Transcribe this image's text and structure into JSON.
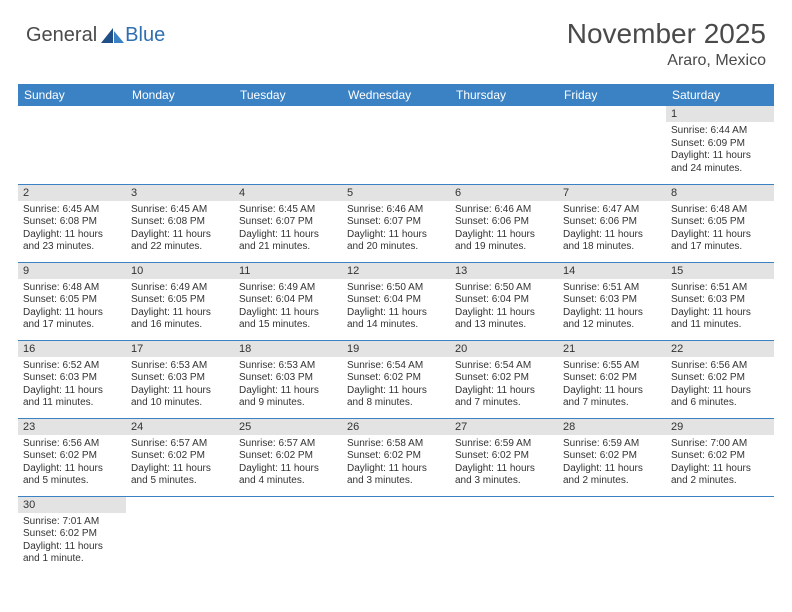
{
  "logo": {
    "text_general": "General",
    "text_blue": "Blue",
    "icon_color_dark": "#1f4f86",
    "icon_color_light": "#3b82c4"
  },
  "header": {
    "month_title": "November 2025",
    "location": "Araro, Mexico"
  },
  "colors": {
    "header_bg": "#3b82c4",
    "header_text": "#ffffff",
    "daynum_bg": "#e3e3e3",
    "cell_border": "#3b82c4",
    "text": "#333333",
    "title_text": "#4a4a4a"
  },
  "weekdays": [
    "Sunday",
    "Monday",
    "Tuesday",
    "Wednesday",
    "Thursday",
    "Friday",
    "Saturday"
  ],
  "weeks": [
    [
      null,
      null,
      null,
      null,
      null,
      null,
      {
        "n": "1",
        "sr": "Sunrise: 6:44 AM",
        "ss": "Sunset: 6:09 PM",
        "dl": "Daylight: 11 hours and 24 minutes."
      }
    ],
    [
      {
        "n": "2",
        "sr": "Sunrise: 6:45 AM",
        "ss": "Sunset: 6:08 PM",
        "dl": "Daylight: 11 hours and 23 minutes."
      },
      {
        "n": "3",
        "sr": "Sunrise: 6:45 AM",
        "ss": "Sunset: 6:08 PM",
        "dl": "Daylight: 11 hours and 22 minutes."
      },
      {
        "n": "4",
        "sr": "Sunrise: 6:45 AM",
        "ss": "Sunset: 6:07 PM",
        "dl": "Daylight: 11 hours and 21 minutes."
      },
      {
        "n": "5",
        "sr": "Sunrise: 6:46 AM",
        "ss": "Sunset: 6:07 PM",
        "dl": "Daylight: 11 hours and 20 minutes."
      },
      {
        "n": "6",
        "sr": "Sunrise: 6:46 AM",
        "ss": "Sunset: 6:06 PM",
        "dl": "Daylight: 11 hours and 19 minutes."
      },
      {
        "n": "7",
        "sr": "Sunrise: 6:47 AM",
        "ss": "Sunset: 6:06 PM",
        "dl": "Daylight: 11 hours and 18 minutes."
      },
      {
        "n": "8",
        "sr": "Sunrise: 6:48 AM",
        "ss": "Sunset: 6:05 PM",
        "dl": "Daylight: 11 hours and 17 minutes."
      }
    ],
    [
      {
        "n": "9",
        "sr": "Sunrise: 6:48 AM",
        "ss": "Sunset: 6:05 PM",
        "dl": "Daylight: 11 hours and 17 minutes."
      },
      {
        "n": "10",
        "sr": "Sunrise: 6:49 AM",
        "ss": "Sunset: 6:05 PM",
        "dl": "Daylight: 11 hours and 16 minutes."
      },
      {
        "n": "11",
        "sr": "Sunrise: 6:49 AM",
        "ss": "Sunset: 6:04 PM",
        "dl": "Daylight: 11 hours and 15 minutes."
      },
      {
        "n": "12",
        "sr": "Sunrise: 6:50 AM",
        "ss": "Sunset: 6:04 PM",
        "dl": "Daylight: 11 hours and 14 minutes."
      },
      {
        "n": "13",
        "sr": "Sunrise: 6:50 AM",
        "ss": "Sunset: 6:04 PM",
        "dl": "Daylight: 11 hours and 13 minutes."
      },
      {
        "n": "14",
        "sr": "Sunrise: 6:51 AM",
        "ss": "Sunset: 6:03 PM",
        "dl": "Daylight: 11 hours and 12 minutes."
      },
      {
        "n": "15",
        "sr": "Sunrise: 6:51 AM",
        "ss": "Sunset: 6:03 PM",
        "dl": "Daylight: 11 hours and 11 minutes."
      }
    ],
    [
      {
        "n": "16",
        "sr": "Sunrise: 6:52 AM",
        "ss": "Sunset: 6:03 PM",
        "dl": "Daylight: 11 hours and 11 minutes."
      },
      {
        "n": "17",
        "sr": "Sunrise: 6:53 AM",
        "ss": "Sunset: 6:03 PM",
        "dl": "Daylight: 11 hours and 10 minutes."
      },
      {
        "n": "18",
        "sr": "Sunrise: 6:53 AM",
        "ss": "Sunset: 6:03 PM",
        "dl": "Daylight: 11 hours and 9 minutes."
      },
      {
        "n": "19",
        "sr": "Sunrise: 6:54 AM",
        "ss": "Sunset: 6:02 PM",
        "dl": "Daylight: 11 hours and 8 minutes."
      },
      {
        "n": "20",
        "sr": "Sunrise: 6:54 AM",
        "ss": "Sunset: 6:02 PM",
        "dl": "Daylight: 11 hours and 7 minutes."
      },
      {
        "n": "21",
        "sr": "Sunrise: 6:55 AM",
        "ss": "Sunset: 6:02 PM",
        "dl": "Daylight: 11 hours and 7 minutes."
      },
      {
        "n": "22",
        "sr": "Sunrise: 6:56 AM",
        "ss": "Sunset: 6:02 PM",
        "dl": "Daylight: 11 hours and 6 minutes."
      }
    ],
    [
      {
        "n": "23",
        "sr": "Sunrise: 6:56 AM",
        "ss": "Sunset: 6:02 PM",
        "dl": "Daylight: 11 hours and 5 minutes."
      },
      {
        "n": "24",
        "sr": "Sunrise: 6:57 AM",
        "ss": "Sunset: 6:02 PM",
        "dl": "Daylight: 11 hours and 5 minutes."
      },
      {
        "n": "25",
        "sr": "Sunrise: 6:57 AM",
        "ss": "Sunset: 6:02 PM",
        "dl": "Daylight: 11 hours and 4 minutes."
      },
      {
        "n": "26",
        "sr": "Sunrise: 6:58 AM",
        "ss": "Sunset: 6:02 PM",
        "dl": "Daylight: 11 hours and 3 minutes."
      },
      {
        "n": "27",
        "sr": "Sunrise: 6:59 AM",
        "ss": "Sunset: 6:02 PM",
        "dl": "Daylight: 11 hours and 3 minutes."
      },
      {
        "n": "28",
        "sr": "Sunrise: 6:59 AM",
        "ss": "Sunset: 6:02 PM",
        "dl": "Daylight: 11 hours and 2 minutes."
      },
      {
        "n": "29",
        "sr": "Sunrise: 7:00 AM",
        "ss": "Sunset: 6:02 PM",
        "dl": "Daylight: 11 hours and 2 minutes."
      }
    ],
    [
      {
        "n": "30",
        "sr": "Sunrise: 7:01 AM",
        "ss": "Sunset: 6:02 PM",
        "dl": "Daylight: 11 hours and 1 minute."
      },
      null,
      null,
      null,
      null,
      null,
      null
    ]
  ]
}
